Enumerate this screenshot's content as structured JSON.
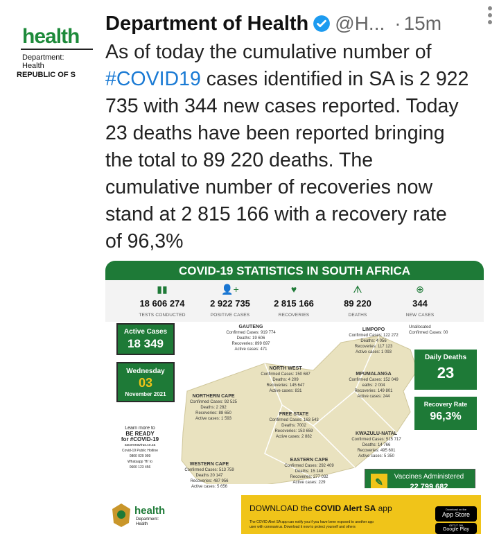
{
  "account": {
    "name": "Department of Health",
    "handle": "@H...",
    "separator": "·",
    "time": "15m",
    "avatar": {
      "word": "health",
      "line1": "Department:",
      "line2": "Health",
      "line3": "REPUBLIC OF S"
    }
  },
  "tweet": {
    "lines": [
      "As of today the cumulative number of",
      " cases identified in SA is 2 922",
      "735 with 344 new cases reported. Today",
      "23 deaths have been reported bringing",
      "the total to 89 220 deaths. The",
      "cumulative number of recoveries now",
      "stand at 2 815 166 with a recovery rate",
      "of 96,3%"
    ],
    "hashtag": "#COVID19"
  },
  "infographic": {
    "title": "COVID-19 STATISTICS IN SOUTH AFRICA",
    "stats": [
      {
        "value": "18 606 274",
        "label": "TESTS CONDUCTED",
        "icon": "test-tubes-icon",
        "glyph": "▮▮"
      },
      {
        "value": "2 922 735",
        "label": "POSITIVE CASES",
        "icon": "person-plus-icon",
        "glyph": "👤+"
      },
      {
        "value": "2 815 166",
        "label": "RECOVERIES",
        "icon": "heartbeat-icon",
        "glyph": "♥"
      },
      {
        "value": "89 220",
        "label": "DEATHS",
        "icon": "deaths-icon",
        "glyph": "ᗑ"
      },
      {
        "value": "344",
        "label": "NEW CASES",
        "icon": "magnifier-plus-icon",
        "glyph": "⊕"
      }
    ],
    "active_cases": {
      "label": "Active Cases",
      "value": "18 349"
    },
    "date": {
      "day": "Wednesday",
      "num": "03",
      "month": "November 2021"
    },
    "daily_deaths": {
      "label": "Daily Deaths",
      "value": "23"
    },
    "recovery_rate": {
      "label": "Recovery Rate",
      "value": "96,3%"
    },
    "unallocated": {
      "title": "Unallocated",
      "line": "Confirmed Cases: 00"
    },
    "provinces": [
      {
        "key": "gauteng",
        "name": "GAUTENG",
        "lines": [
          "Confirmed Cases: 919 774",
          "Deaths: 19 606",
          "Recoveries: 899 697",
          "Active cases: 471"
        ]
      },
      {
        "key": "limpopo",
        "name": "LIMPOPO",
        "lines": [
          "Confirmed Cases: 122 272",
          "Deaths: 4 056",
          "Recoveries: 117 123",
          "Active cases: 1 093"
        ]
      },
      {
        "key": "northwest",
        "name": "NORTH WEST",
        "lines": [
          "Confirmed Cases: 150 687",
          "Deaths: 4 209",
          "Recoveries: 145 647",
          "Active cases: 831"
        ]
      },
      {
        "key": "mpumalanga",
        "name": "MPUMALANGA",
        "lines": [
          "Confirmed Cases: 152 049",
          "eaths: 2 004",
          "Recoveries: 149 801",
          "Active cases: 244"
        ]
      },
      {
        "key": "northerncape",
        "name": "NORTHERN CAPE",
        "lines": [
          "Confirmed Cases: 92 525",
          "Deaths: 2 282",
          "Recoveries: 88 650",
          "Active cases: 1 593"
        ]
      },
      {
        "key": "freestate",
        "name": "FREE STATE",
        "lines": [
          "Confirmed Cases: 163 543",
          "Deaths: 7002",
          "Recoveries: 153 659",
          "Active cases: 2 882"
        ]
      },
      {
        "key": "kzn",
        "name": "KWAZULU-NATAL",
        "lines": [
          "Confirmed Cases: 515 717",
          "Deaths: 14 766",
          "Recoveries: 495 601",
          "Active cases: 5 350"
        ]
      },
      {
        "key": "westerncape",
        "name": "WESTERN CAPE",
        "lines": [
          "Confirmed Cases: 513 759",
          "Deaths 20 147",
          "Recoveries: 487 956",
          "Active cases: 5 656"
        ]
      },
      {
        "key": "easterncape",
        "name": "EASTERN CAPE",
        "lines": [
          "Confirmed Cases: 292 409",
          "Deaths: 15 148",
          "Recoveries: 277 032",
          "Active cases: 229"
        ]
      }
    ],
    "learn_more": {
      "l1": "Learn more to",
      "l2": "BE READY",
      "l3": "for #COVID-19",
      "l4": "sacoronavirus.co.za",
      "l5": "Covid-19 Public Hotline",
      "l6": "0800 029 999",
      "l7": "Whatsapp 'Hi' to",
      "l8": "0600 123 456"
    },
    "vaccines": {
      "label": "Vaccines Administered",
      "value": "22 799 682"
    },
    "footer": {
      "health": "health",
      "dept1": "Department:",
      "dept2": "Health",
      "download_prefix": "DOWNLOAD the ",
      "download_app": "COVID Alert SA",
      "download_suffix": " app",
      "small1": "The COVID Alert SA app can notify you if you have been exposed to another app",
      "small2": "user with coronavirus. Download it now to protect yourself and others",
      "appstore_top": "Download on the",
      "appstore": "App Store",
      "gplay_top": "GET IT ON",
      "gplay": "Google Play"
    }
  },
  "colors": {
    "brand_green": "#1e7a37",
    "link_blue": "#1a7ad4",
    "alert_yellow": "#f0c419"
  }
}
